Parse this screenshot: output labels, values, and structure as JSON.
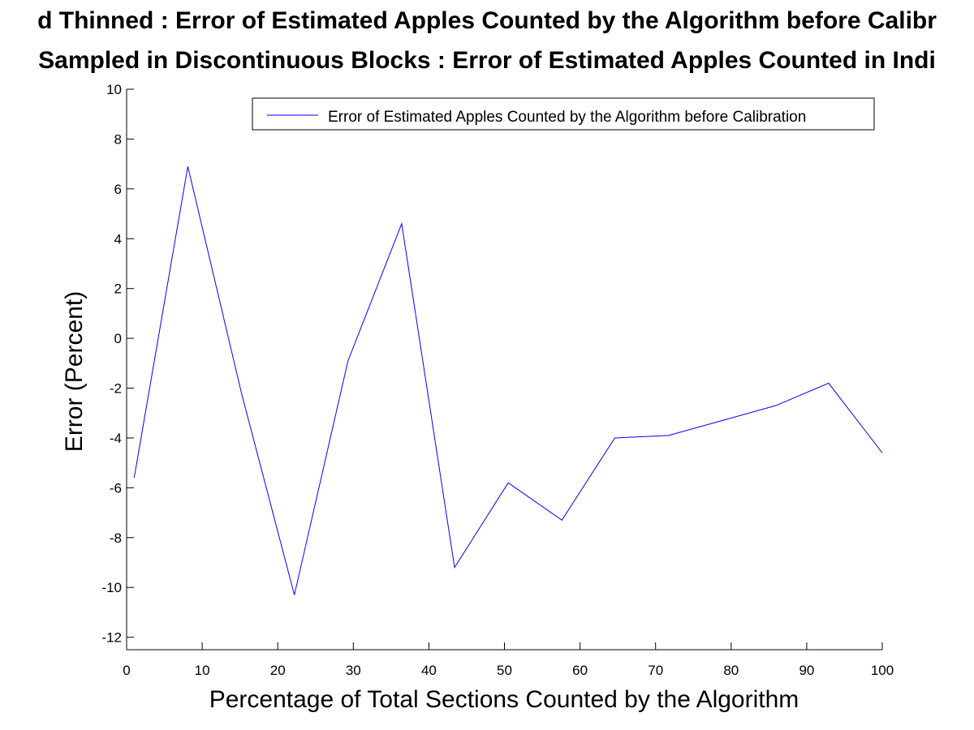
{
  "chart_data": {
    "type": "line",
    "title_lines": [
      "d Thinned : Error of Estimated Apples Counted by the Algorithm before Calibr",
      "Sampled in Discontinuous Blocks : Error of Estimated Apples Counted in Indi"
    ],
    "xlabel": "Percentage of Total Sections Counted by the Algorithm",
    "ylabel": "Error (Percent)",
    "xlim": [
      0,
      100
    ],
    "ylim": [
      -12.5,
      10
    ],
    "xticks": [
      0,
      10,
      20,
      30,
      40,
      50,
      60,
      70,
      80,
      90,
      100
    ],
    "yticks": [
      -12,
      -10,
      -8,
      -6,
      -4,
      -2,
      0,
      2,
      4,
      6,
      8,
      10
    ],
    "grid": false,
    "legend_position": "top-right",
    "series": [
      {
        "name": "Error of Estimated Apples Counted by the Algorithm before Calibration",
        "color": "#0000ff",
        "x": [
          1,
          8.1,
          15.2,
          22.2,
          29.3,
          36.4,
          43.4,
          50.5,
          57.6,
          64.6,
          71.7,
          78.8,
          85.9,
          92.9,
          100
        ],
        "y": [
          -5.6,
          6.9,
          -2.2,
          -10.3,
          -0.9,
          4.6,
          -9.2,
          -5.8,
          -7.3,
          -4.0,
          -3.9,
          -3.3,
          -2.7,
          -1.8,
          -4.6
        ]
      }
    ]
  }
}
